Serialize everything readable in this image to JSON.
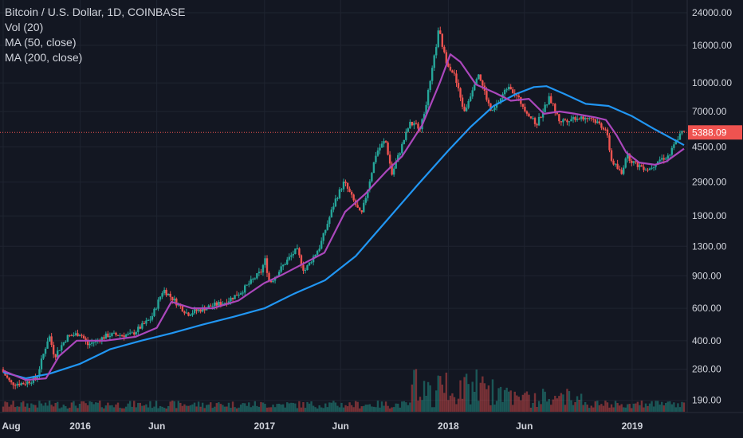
{
  "legend": {
    "symbol": "Bitcoin / U.S. Dollar, 1D, COINBASE",
    "vol": "Vol (20)",
    "ma50": "MA (50, close)",
    "ma200": "MA (200, close)"
  },
  "colors": {
    "background": "#131722",
    "grid": "#1f2430",
    "up": "#26a69a",
    "down": "#ef5350",
    "ma50": "#ab47bc",
    "ma200": "#2196f3",
    "price_line": "#ef5350",
    "price_badge": "#ef5350"
  },
  "chart_data": {
    "type": "line",
    "yscale": "log",
    "ylim": [
      160,
      26000
    ],
    "y_ticks": [
      "24000.00",
      "16000.00",
      "10000.00",
      "7000.00",
      "4500.00",
      "2900.00",
      "1900.00",
      "1300.00",
      "900.00",
      "600.00",
      "400.00",
      "280.00",
      "190.00"
    ],
    "x_ticks": [
      "Aug",
      "2016",
      "Jun",
      "2017",
      "Jun",
      "2018",
      "Jun",
      "2019"
    ],
    "last_price": "5388.09",
    "price_series": [
      {
        "date": "2015-08-01",
        "value": 280
      },
      {
        "date": "2015-08-20",
        "value": 235
      },
      {
        "date": "2015-09-15",
        "value": 235
      },
      {
        "date": "2015-10-10",
        "value": 250
      },
      {
        "date": "2015-11-04",
        "value": 430
      },
      {
        "date": "2015-11-15",
        "value": 330
      },
      {
        "date": "2015-12-10",
        "value": 420
      },
      {
        "date": "2016-01-05",
        "value": 440
      },
      {
        "date": "2016-01-20",
        "value": 380
      },
      {
        "date": "2016-03-01",
        "value": 430
      },
      {
        "date": "2016-04-15",
        "value": 430
      },
      {
        "date": "2016-05-25",
        "value": 530
      },
      {
        "date": "2016-06-18",
        "value": 760
      },
      {
        "date": "2016-07-10",
        "value": 660
      },
      {
        "date": "2016-08-05",
        "value": 560
      },
      {
        "date": "2016-09-15",
        "value": 610
      },
      {
        "date": "2016-10-20",
        "value": 650
      },
      {
        "date": "2016-11-20",
        "value": 740
      },
      {
        "date": "2016-12-31",
        "value": 960
      },
      {
        "date": "2017-01-05",
        "value": 1130
      },
      {
        "date": "2017-01-15",
        "value": 820
      },
      {
        "date": "2017-02-20",
        "value": 1100
      },
      {
        "date": "2017-03-10",
        "value": 1250
      },
      {
        "date": "2017-03-25",
        "value": 950
      },
      {
        "date": "2017-04-25",
        "value": 1300
      },
      {
        "date": "2017-05-25",
        "value": 2300
      },
      {
        "date": "2017-06-12",
        "value": 2900
      },
      {
        "date": "2017-07-16",
        "value": 1900
      },
      {
        "date": "2017-08-15",
        "value": 4200
      },
      {
        "date": "2017-09-02",
        "value": 4900
      },
      {
        "date": "2017-09-15",
        "value": 3200
      },
      {
        "date": "2017-10-20",
        "value": 6000
      },
      {
        "date": "2017-11-12",
        "value": 5800
      },
      {
        "date": "2017-11-30",
        "value": 10000
      },
      {
        "date": "2017-12-17",
        "value": 19500
      },
      {
        "date": "2017-12-30",
        "value": 13500
      },
      {
        "date": "2018-01-17",
        "value": 11000
      },
      {
        "date": "2018-02-06",
        "value": 6900
      },
      {
        "date": "2018-03-05",
        "value": 11500
      },
      {
        "date": "2018-04-01",
        "value": 6800
      },
      {
        "date": "2018-05-05",
        "value": 9800
      },
      {
        "date": "2018-06-28",
        "value": 5900
      },
      {
        "date": "2018-07-25",
        "value": 8300
      },
      {
        "date": "2018-08-14",
        "value": 6200
      },
      {
        "date": "2018-09-15",
        "value": 6500
      },
      {
        "date": "2018-10-15",
        "value": 6500
      },
      {
        "date": "2018-11-14",
        "value": 5600
      },
      {
        "date": "2018-11-25",
        "value": 3800
      },
      {
        "date": "2018-12-15",
        "value": 3200
      },
      {
        "date": "2018-12-24",
        "value": 4100
      },
      {
        "date": "2019-01-10",
        "value": 3650
      },
      {
        "date": "2019-02-07",
        "value": 3400
      },
      {
        "date": "2019-02-25",
        "value": 3800
      },
      {
        "date": "2019-03-20",
        "value": 4050
      },
      {
        "date": "2019-04-05",
        "value": 5000
      },
      {
        "date": "2019-04-14",
        "value": 5388.09
      }
    ],
    "ma50_series": [
      {
        "date": "2015-08-01",
        "value": 275
      },
      {
        "date": "2015-09-15",
        "value": 245
      },
      {
        "date": "2015-10-25",
        "value": 250
      },
      {
        "date": "2015-11-20",
        "value": 330
      },
      {
        "date": "2015-12-25",
        "value": 400
      },
      {
        "date": "2016-02-20",
        "value": 400
      },
      {
        "date": "2016-04-20",
        "value": 420
      },
      {
        "date": "2016-06-01",
        "value": 470
      },
      {
        "date": "2016-06-30",
        "value": 650
      },
      {
        "date": "2016-08-10",
        "value": 600
      },
      {
        "date": "2016-09-20",
        "value": 600
      },
      {
        "date": "2016-11-10",
        "value": 660
      },
      {
        "date": "2016-12-31",
        "value": 820
      },
      {
        "date": "2017-02-01",
        "value": 900
      },
      {
        "date": "2017-03-20",
        "value": 1050
      },
      {
        "date": "2017-04-30",
        "value": 1200
      },
      {
        "date": "2017-06-10",
        "value": 2000
      },
      {
        "date": "2017-07-20",
        "value": 2500
      },
      {
        "date": "2017-08-30",
        "value": 3300
      },
      {
        "date": "2017-10-01",
        "value": 4000
      },
      {
        "date": "2017-11-10",
        "value": 5900
      },
      {
        "date": "2017-12-15",
        "value": 10000
      },
      {
        "date": "2018-01-05",
        "value": 14300
      },
      {
        "date": "2018-01-25",
        "value": 13000
      },
      {
        "date": "2018-02-25",
        "value": 9800
      },
      {
        "date": "2018-04-05",
        "value": 8800
      },
      {
        "date": "2018-05-05",
        "value": 8000
      },
      {
        "date": "2018-06-10",
        "value": 8200
      },
      {
        "date": "2018-07-10",
        "value": 6800
      },
      {
        "date": "2018-08-10",
        "value": 7000
      },
      {
        "date": "2018-09-10",
        "value": 6800
      },
      {
        "date": "2018-10-20",
        "value": 6500
      },
      {
        "date": "2018-11-10",
        "value": 6300
      },
      {
        "date": "2018-12-01",
        "value": 5200
      },
      {
        "date": "2018-12-20",
        "value": 4200
      },
      {
        "date": "2019-01-15",
        "value": 3700
      },
      {
        "date": "2019-02-15",
        "value": 3600
      },
      {
        "date": "2019-03-10",
        "value": 3750
      },
      {
        "date": "2019-04-14",
        "value": 4400
      }
    ],
    "ma200_series": [
      {
        "date": "2015-08-01",
        "value": 270
      },
      {
        "date": "2015-09-15",
        "value": 250
      },
      {
        "date": "2015-11-01",
        "value": 265
      },
      {
        "date": "2016-01-01",
        "value": 300
      },
      {
        "date": "2016-03-01",
        "value": 360
      },
      {
        "date": "2016-05-01",
        "value": 400
      },
      {
        "date": "2016-07-01",
        "value": 440
      },
      {
        "date": "2016-09-01",
        "value": 490
      },
      {
        "date": "2016-11-01",
        "value": 540
      },
      {
        "date": "2017-01-01",
        "value": 600
      },
      {
        "date": "2017-03-01",
        "value": 720
      },
      {
        "date": "2017-05-01",
        "value": 850
      },
      {
        "date": "2017-07-01",
        "value": 1150
      },
      {
        "date": "2017-09-01",
        "value": 1800
      },
      {
        "date": "2017-11-01",
        "value": 2800
      },
      {
        "date": "2018-01-01",
        "value": 4300
      },
      {
        "date": "2018-02-15",
        "value": 5800
      },
      {
        "date": "2018-04-01",
        "value": 7500
      },
      {
        "date": "2018-05-15",
        "value": 8700
      },
      {
        "date": "2018-06-20",
        "value": 9500
      },
      {
        "date": "2018-07-15",
        "value": 9600
      },
      {
        "date": "2018-08-20",
        "value": 8700
      },
      {
        "date": "2018-10-01",
        "value": 7700
      },
      {
        "date": "2018-11-15",
        "value": 7500
      },
      {
        "date": "2019-01-01",
        "value": 6600
      },
      {
        "date": "2019-02-15",
        "value": 5600
      },
      {
        "date": "2019-04-14",
        "value": 4600
      }
    ]
  }
}
